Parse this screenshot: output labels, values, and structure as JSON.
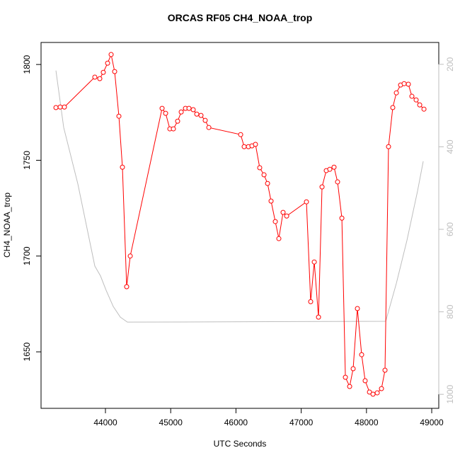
{
  "chart_data": {
    "type": "line",
    "title": "ORCAS RF05 CH4_NOAA_trop",
    "x_label": "UTC Seconds",
    "y_label": "CH4_NOAA_trop",
    "xlim": [
      43013,
      49108
    ],
    "ylim": [
      1620.5,
      1811.5
    ],
    "y2lim": [
      1034,
      147
    ],
    "xticks": [
      44000,
      45000,
      46000,
      47000,
      48000,
      49000
    ],
    "yticks": [
      1650,
      1700,
      1750,
      1800
    ],
    "y2ticks": [
      200,
      400,
      600,
      800,
      1000
    ],
    "y2_color": "#bebebe",
    "series": [
      {
        "color": "#ff0000",
        "markers": true,
        "x": [
          43241,
          43306,
          43371,
          43837,
          43913,
          43967,
          44033,
          44087,
          44141,
          44206,
          44260,
          44325,
          44380,
          44868,
          44922,
          44987,
          45041,
          45106,
          45161,
          45226,
          45280,
          45345,
          45399,
          45464,
          45529,
          45584,
          46072,
          46126,
          46191,
          46245,
          46299,
          46364,
          46430,
          46484,
          46538,
          46603,
          46657,
          46722,
          46777,
          47080,
          47145,
          47200,
          47265,
          47319,
          47384,
          47438,
          47503,
          47557,
          47623,
          47677,
          47742,
          47796,
          47861,
          47926,
          47980,
          48046,
          48100,
          48165,
          48230,
          48284,
          48338,
          48403,
          48458,
          48523,
          48577,
          48642,
          48696,
          48761,
          48816,
          48881
        ],
        "values": [
          1777.5,
          1777.8,
          1777.8,
          1793.4,
          1792.6,
          1795.9,
          1800.7,
          1805.2,
          1796.3,
          1773,
          1746.4,
          1684,
          1700,
          1777.1,
          1774.5,
          1766.4,
          1766.4,
          1770.4,
          1775.2,
          1777.1,
          1777.1,
          1776.4,
          1774.1,
          1773.4,
          1770.8,
          1767.1,
          1763.4,
          1757.1,
          1757.1,
          1757.5,
          1758.3,
          1746.1,
          1742.4,
          1737.9,
          1728.7,
          1718,
          1709.1,
          1722.8,
          1720.9,
          1728.3,
          1676.2,
          1696.9,
          1668.1,
          1736.1,
          1744.6,
          1745.3,
          1746.4,
          1738.7,
          1719.8,
          1636.7,
          1631.9,
          1641.2,
          1672.6,
          1648.5,
          1634.9,
          1629,
          1627.9,
          1628.6,
          1630.8,
          1640.4,
          1757.1,
          1777.5,
          1785.2,
          1789.3,
          1790,
          1789.7,
          1783.4,
          1781.5,
          1778.9,
          1776.7
        ]
      },
      {
        "color": "#bebebe",
        "axis": "y2",
        "markers": false,
        "x": [
          43241,
          43360,
          43577,
          43837,
          43924,
          44011,
          44119,
          44228,
          44336,
          48295,
          48458,
          48620,
          48783,
          48870
        ],
        "values": [
          215,
          353,
          490,
          689,
          713,
          748,
          787,
          813,
          825,
          823,
          731,
          627,
          507,
          435
        ]
      }
    ]
  }
}
